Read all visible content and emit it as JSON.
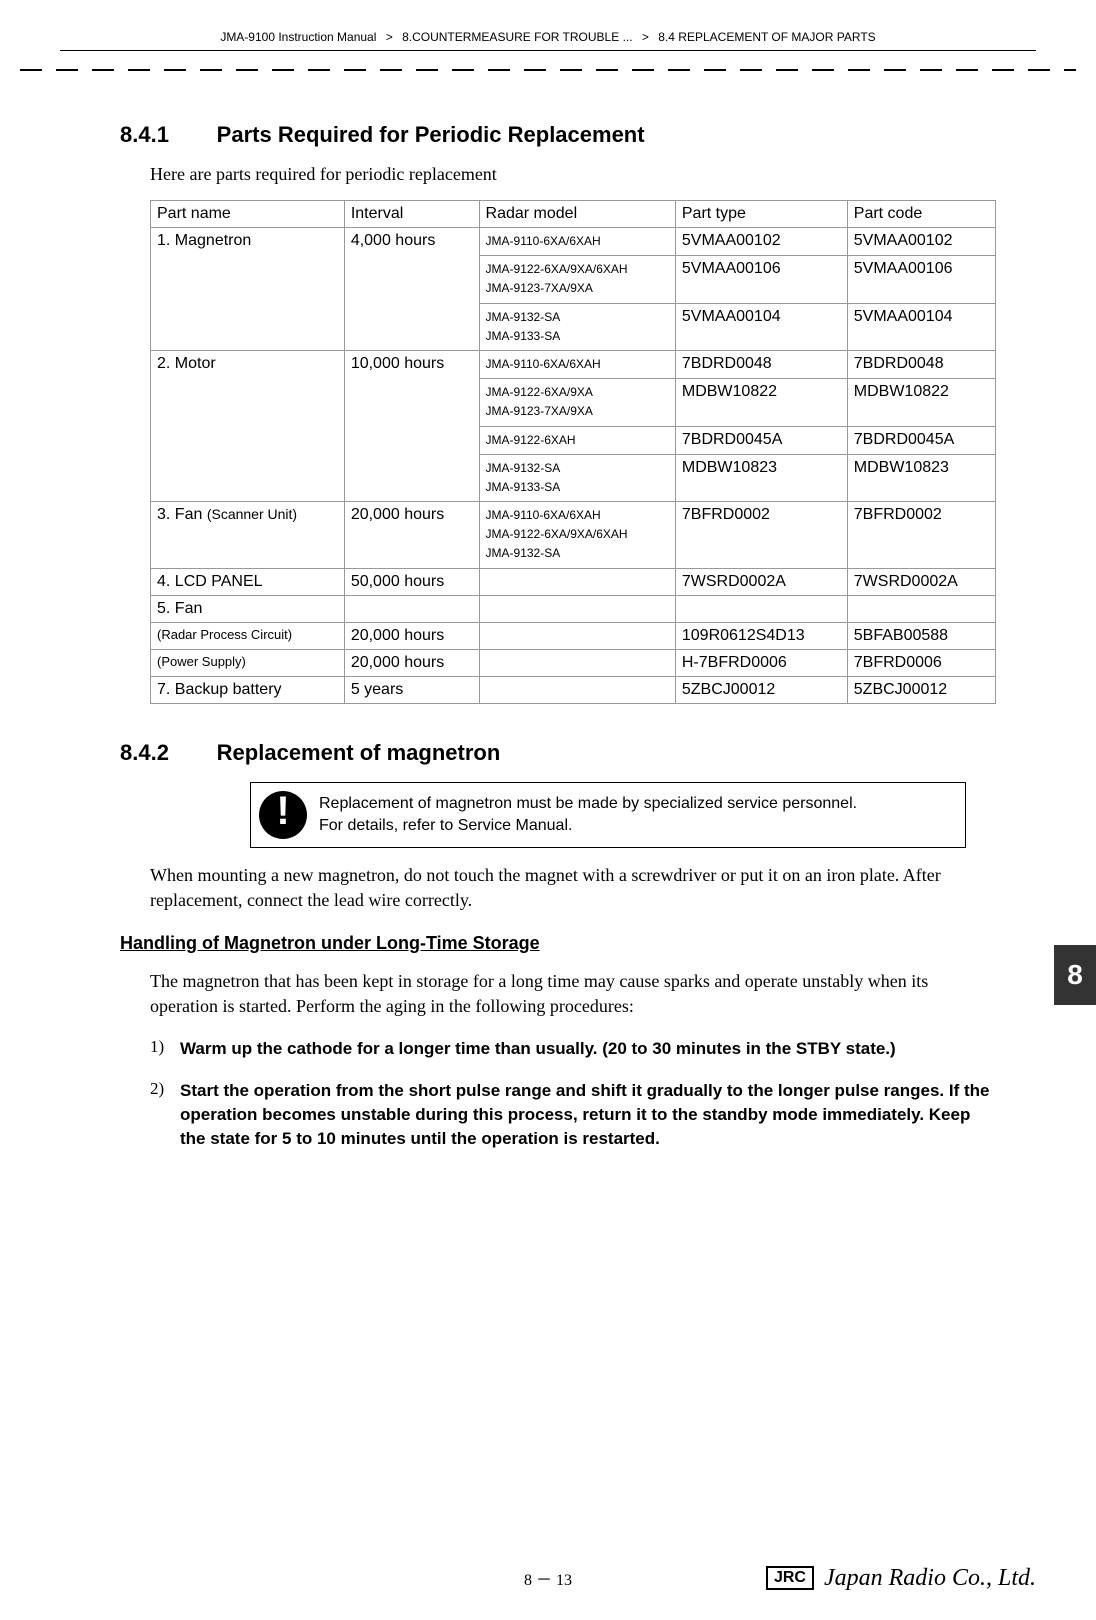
{
  "breadcrumb": {
    "manual": "JMA-9100 Instruction Manual",
    "sep": ">",
    "chapter": "8.COUNTERMEASURE FOR TROUBLE ...",
    "section": "8.4  REPLACEMENT OF MAJOR PARTS"
  },
  "s841": {
    "num": "8.4.1",
    "title": "Parts Required for Periodic Replacement",
    "intro": "Here are parts required for periodic replacement"
  },
  "table": {
    "headers": [
      "Part name",
      "Interval",
      "Radar model",
      "Part type",
      "Part code"
    ],
    "r1": {
      "name": "1. Magnetron",
      "interval": "4,000 hours",
      "m1": "JMA-9110-6XA/6XAH",
      "t1": "5VMAA00102",
      "c1": "5VMAA00102",
      "m2a": "JMA-9122-6XA/9XA/6XAH",
      "m2b": "JMA-9123-7XA/9XA",
      "t2": "5VMAA00106",
      "c2": "5VMAA00106",
      "m3a": "JMA-9132-SA",
      "m3b": "JMA-9133-SA",
      "t3": "5VMAA00104",
      "c3": "5VMAA00104"
    },
    "r2": {
      "name": "2. Motor",
      "interval": "10,000 hours",
      "m1": "JMA-9110-6XA/6XAH",
      "t1": "7BDRD0048",
      "c1": "7BDRD0048",
      "m2a": "JMA-9122-6XA/9XA",
      "m2b": "JMA-9123-7XA/9XA",
      "t2": "MDBW10822",
      "c2": "MDBW10822",
      "m3": "JMA-9122-6XAH",
      "t3": "7BDRD0045A",
      "c3": "7BDRD0045A",
      "m4a": "JMA-9132-SA",
      "m4b": "JMA-9133-SA",
      "t4": "MDBW10823",
      "c4": "MDBW10823"
    },
    "r3": {
      "name": "3. Fan ",
      "note": "(Scanner Unit)",
      "interval": "20,000 hours",
      "m1": "JMA-9110-6XA/6XAH",
      "m2": "JMA-9122-6XA/9XA/6XAH",
      "m3": "JMA-9132-SA",
      "t1": "7BFRD0002",
      "c1": "7BFRD0002"
    },
    "r4": {
      "name": "4. LCD PANEL",
      "interval": "50,000 hours",
      "t1": "7WSRD0002A",
      "c1": "7WSRD0002A"
    },
    "r5": {
      "name": "5. Fan"
    },
    "r6": {
      "name": "(Radar Process Circuit)",
      "interval": "20,000 hours",
      "t1": "109R0612S4D13",
      "c1": "5BFAB00588"
    },
    "r7": {
      "name": "(Power Supply)",
      "interval": "20,000 hours",
      "t1": "H-7BFRD0006",
      "c1": "7BFRD0006"
    },
    "r8": {
      "name": "7. Backup battery",
      "interval": "5 years",
      "t1": "5ZBCJ00012",
      "c1": "5ZBCJ00012"
    }
  },
  "s842": {
    "num": "8.4.2",
    "title": "Replacement of magnetron",
    "warn1": "Replacement of magnetron must be made by specialized service personnel.",
    "warn2": "For details, refer to Service Manual.",
    "para1": "When mounting a new magnetron, do not touch the magnet with a screwdriver or put it on an iron plate. After replacement, connect the lead wire correctly.",
    "sub": "Handling of Magnetron under Long-Time Storage",
    "para2": "The magnetron that has been kept in storage for a long time may cause sparks and operate unstably when its operation is started. Perform the aging in the following procedures:",
    "p1n": "1)",
    "p1": "Warm up the cathode for a longer time than usually. (20 to 30 minutes in the STBY state.)",
    "p2n": "2)",
    "p2": "Start the operation from the short pulse range and shift it gradually to the longer pulse ranges.  If the operation becomes unstable during this process, return it to the standby mode immediately. Keep the state for 5 to 10 minutes until the operation is restarted."
  },
  "sidetab": "8",
  "footer": {
    "page": "8 － 13",
    "jrc": "JRC",
    "brand": "Japan Radio Co., Ltd."
  }
}
